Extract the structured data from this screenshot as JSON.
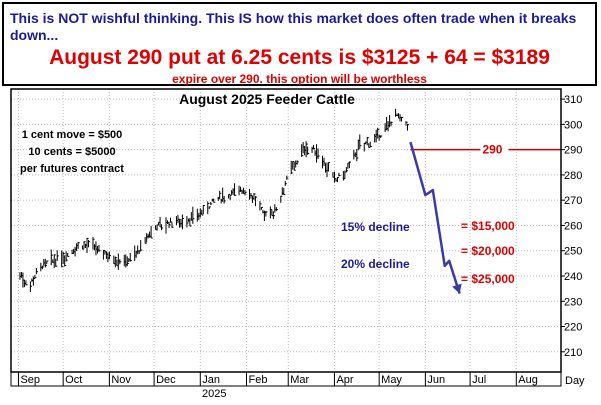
{
  "header": {
    "headline": "This is NOT wishful thinking. This IS how this market does often trade when it breaks down...",
    "put_line": "August 290 put at 6.25 cents is $3125 + 64 = $3189",
    "expire_note": "expire over 290. this option will be worthless"
  },
  "colors": {
    "headline": "#1a1aa0",
    "put_text": "#e00000",
    "bars": "#000000",
    "strike_line": "#cc0000",
    "arrow": "#3a3aaa",
    "decline_text": "#1a1aa0",
    "value_text": "#e00000",
    "grid": "#bbbbbb"
  },
  "chart_data": {
    "type": "ohlc",
    "title": "August 2025 Feeder Cattle",
    "xlabel": "Day",
    "ylabel": "",
    "ylim": [
      202,
      314
    ],
    "yticks": [
      210,
      220,
      230,
      240,
      250,
      260,
      270,
      280,
      290,
      300,
      310
    ],
    "xtick_labels": [
      "Sep",
      "Oct",
      "Nov",
      "Dec",
      "Jan",
      "Feb",
      "Mar",
      "Apr",
      "May",
      "Jun",
      "Jul",
      "Aug"
    ],
    "year_label": "2025",
    "grid": true,
    "price_path": [
      {
        "date": "2024-09-01",
        "price": 242
      },
      {
        "date": "2024-09-08",
        "price": 236
      },
      {
        "date": "2024-09-15",
        "price": 244
      },
      {
        "date": "2024-09-28",
        "price": 247
      },
      {
        "date": "2024-10-05",
        "price": 249
      },
      {
        "date": "2024-10-12",
        "price": 253
      },
      {
        "date": "2024-10-19",
        "price": 252
      },
      {
        "date": "2024-10-28",
        "price": 250
      },
      {
        "date": "2024-11-05",
        "price": 247
      },
      {
        "date": "2024-11-12",
        "price": 246
      },
      {
        "date": "2024-11-22",
        "price": 251
      },
      {
        "date": "2024-12-01",
        "price": 260
      },
      {
        "date": "2024-12-15",
        "price": 262
      },
      {
        "date": "2024-12-28",
        "price": 263
      },
      {
        "date": "2025-01-10",
        "price": 270
      },
      {
        "date": "2025-01-20",
        "price": 272
      },
      {
        "date": "2025-01-28",
        "price": 275
      },
      {
        "date": "2025-02-05",
        "price": 272
      },
      {
        "date": "2025-02-12",
        "price": 265
      },
      {
        "date": "2025-02-20",
        "price": 266
      },
      {
        "date": "2025-03-01",
        "price": 280
      },
      {
        "date": "2025-03-12",
        "price": 291
      },
      {
        "date": "2025-03-22",
        "price": 289
      },
      {
        "date": "2025-04-01",
        "price": 278
      },
      {
        "date": "2025-04-08",
        "price": 281
      },
      {
        "date": "2025-04-18",
        "price": 292
      },
      {
        "date": "2025-04-28",
        "price": 294
      },
      {
        "date": "2025-05-05",
        "price": 298
      },
      {
        "date": "2025-05-12",
        "price": 305
      },
      {
        "date": "2025-05-16",
        "price": 301
      },
      {
        "date": "2025-05-20",
        "price": 300
      }
    ],
    "projection_path": [
      {
        "date": "2025-05-22",
        "price": 293
      },
      {
        "date": "2025-06-01",
        "price": 272
      },
      {
        "date": "2025-06-06",
        "price": 274
      },
      {
        "date": "2025-06-14",
        "price": 244
      },
      {
        "date": "2025-06-17",
        "price": 246
      },
      {
        "date": "2025-06-24",
        "price": 233
      }
    ],
    "strike_line": {
      "price": 290,
      "label": "290",
      "from_date": "2025-05-22",
      "to_date": "2025-08-31"
    },
    "annotations": {
      "contract_note": [
        "1 cent move = $500",
        "10 cents = $5000",
        "per futures contract"
      ],
      "decline_15": "15% decline",
      "decline_20": "20% decline",
      "value_15": "= $15,000",
      "value_20": "= $20,000",
      "value_25": "= $25,000"
    }
  }
}
